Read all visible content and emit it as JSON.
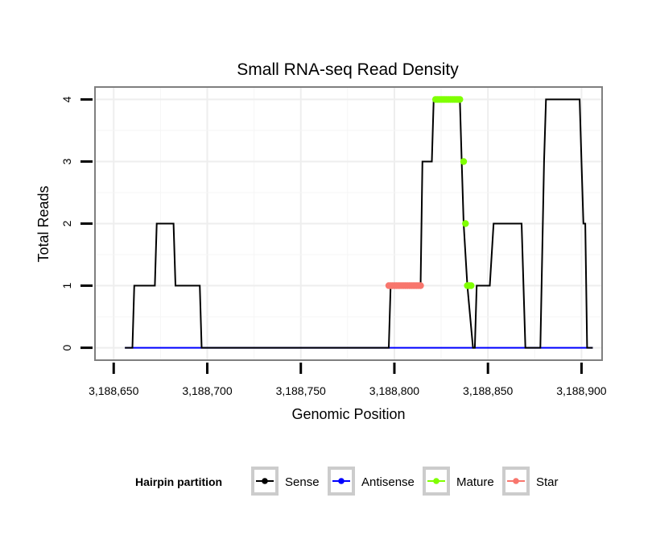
{
  "chart_data": {
    "type": "line",
    "title": "Small RNA-seq Read Density",
    "xlabel": "Genomic Position",
    "ylabel": "Total Reads",
    "xlim": [
      3188640,
      3188911
    ],
    "ylim": [
      -0.2,
      4.2
    ],
    "x_ticks": [
      3188650,
      3188700,
      3188750,
      3188800,
      3188850,
      3188900
    ],
    "x_tick_labels": [
      "3,188,650",
      "3,188,700",
      "3,188,750",
      "3,188,800",
      "3,188,850",
      "3,188,900"
    ],
    "y_ticks": [
      0,
      1,
      2,
      3,
      4
    ],
    "y_tick_labels": [
      "0",
      "1",
      "2",
      "3",
      "4"
    ],
    "grid": true,
    "series": [
      {
        "name": "Sense",
        "color": "#000000",
        "points": [
          [
            3188656,
            0
          ],
          [
            3188660,
            0
          ],
          [
            3188661,
            1
          ],
          [
            3188672,
            1
          ],
          [
            3188673,
            2
          ],
          [
            3188682,
            2
          ],
          [
            3188683,
            1
          ],
          [
            3188696,
            1
          ],
          [
            3188697,
            0
          ],
          [
            3188797,
            0
          ],
          [
            3188798,
            1
          ],
          [
            3188814,
            1
          ],
          [
            3188815,
            3
          ],
          [
            3188820,
            3
          ],
          [
            3188821,
            4
          ],
          [
            3188835,
            4
          ],
          [
            3188836,
            3
          ],
          [
            3188837,
            2
          ],
          [
            3188839,
            1
          ],
          [
            3188842,
            0
          ],
          [
            3188843,
            0
          ],
          [
            3188844,
            1
          ],
          [
            3188851,
            1
          ],
          [
            3188853,
            2
          ],
          [
            3188868,
            2
          ],
          [
            3188870,
            0
          ],
          [
            3188878,
            0
          ],
          [
            3188880,
            3
          ],
          [
            3188881,
            4
          ],
          [
            3188899,
            4
          ],
          [
            3188900,
            3
          ],
          [
            3188901,
            2
          ],
          [
            3188902,
            2
          ],
          [
            3188903,
            0
          ],
          [
            3188906,
            0
          ]
        ]
      },
      {
        "name": "Antisense",
        "color": "#0000ff",
        "points": [
          [
            3188656,
            0
          ],
          [
            3188906,
            0
          ]
        ]
      },
      {
        "name": "Mature",
        "color": "#7fff00",
        "points": [
          [
            3188822,
            4
          ],
          [
            3188823,
            4
          ],
          [
            3188824,
            4
          ],
          [
            3188825,
            4
          ],
          [
            3188826,
            4
          ],
          [
            3188827,
            4
          ],
          [
            3188828,
            4
          ],
          [
            3188829,
            4
          ],
          [
            3188830,
            4
          ],
          [
            3188831,
            4
          ],
          [
            3188832,
            4
          ],
          [
            3188833,
            4
          ],
          [
            3188834,
            4
          ],
          [
            3188835,
            4
          ],
          [
            3188837,
            3
          ],
          [
            3188838,
            2
          ],
          [
            3188839,
            1
          ],
          [
            3188840,
            1
          ],
          [
            3188841,
            1
          ]
        ]
      },
      {
        "name": "Star",
        "color": "#f8766d",
        "points": [
          [
            3188797,
            1
          ],
          [
            3188798,
            1
          ],
          [
            3188799,
            1
          ],
          [
            3188800,
            1
          ],
          [
            3188801,
            1
          ],
          [
            3188802,
            1
          ],
          [
            3188803,
            1
          ],
          [
            3188804,
            1
          ],
          [
            3188805,
            1
          ],
          [
            3188806,
            1
          ],
          [
            3188807,
            1
          ],
          [
            3188808,
            1
          ],
          [
            3188809,
            1
          ],
          [
            3188810,
            1
          ],
          [
            3188811,
            1
          ],
          [
            3188812,
            1
          ],
          [
            3188813,
            1
          ],
          [
            3188814,
            1
          ]
        ]
      }
    ],
    "legend": {
      "title": "Hairpin partition",
      "position": "bottom",
      "items": [
        "Sense",
        "Antisense",
        "Mature",
        "Star"
      ]
    }
  }
}
